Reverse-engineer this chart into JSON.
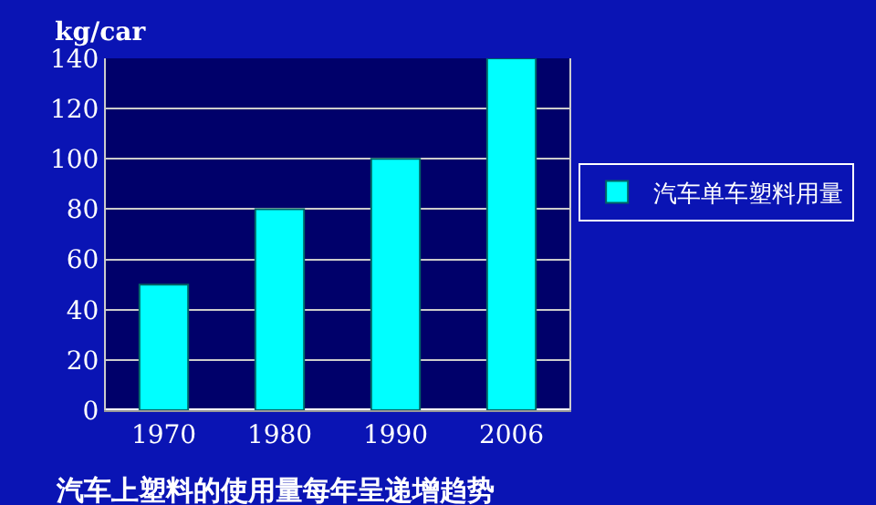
{
  "chart_data": {
    "type": "bar",
    "title": "汽车上塑料的使用量每年呈递增趋势",
    "ylabel": "kg/car",
    "categories": [
      "1970",
      "1980",
      "1990",
      "2006"
    ],
    "series": [
      {
        "name": "汽车单车塑料用量",
        "color": "#00ffff",
        "values": [
          50,
          80,
          100,
          140
        ]
      }
    ],
    "ylim": [
      0,
      140
    ],
    "yticks": [
      0,
      20,
      40,
      60,
      80,
      100,
      120,
      140
    ],
    "grid": "y",
    "legend": "right"
  }
}
